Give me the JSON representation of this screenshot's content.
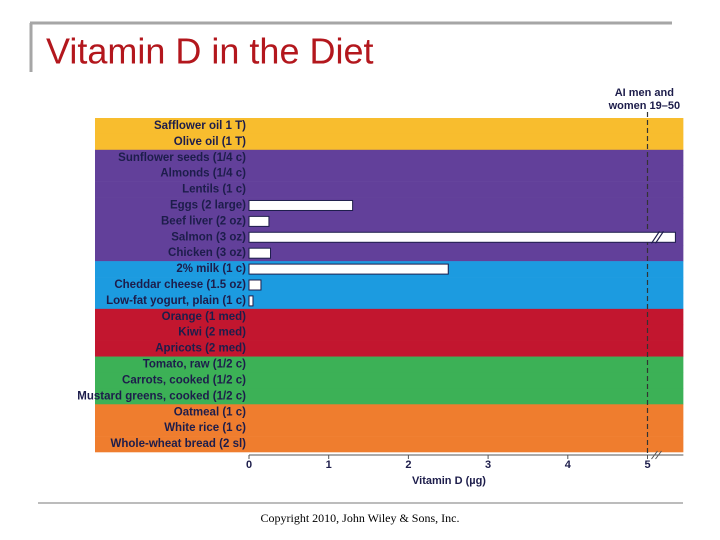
{
  "title": "Vitamin D in the Diet",
  "footer": "Copyright 2010, John Wiley & Sons, Inc.",
  "chart_data": {
    "type": "bar",
    "orientation": "horizontal",
    "categories": [
      "Safflower oil 1 T)",
      "Olive oil (1 T)",
      "Sunflower seeds (1/4 c)",
      "Almonds (1/4 c)",
      "Lentils (1 c)",
      "Eggs (2 large)",
      "Beef liver (2 oz)",
      "Salmon (3 oz)",
      "Chicken (3 oz)",
      "2% milk (1 c)",
      "Cheddar cheese (1.5 oz)",
      "Low-fat yogurt, plain (1 c)",
      "Orange (1 med)",
      "Kiwi (2 med)",
      "Apricots (2 med)",
      "Tomato, raw (1/2 c)",
      "Carrots, cooked (1/2 c)",
      "Mustard greens, cooked (1/2 c)",
      "Oatmeal (1 c)",
      "White rice (1 c)",
      "Whole-wheat bread (2 sl)"
    ],
    "values": [
      0,
      0,
      0,
      0,
      0,
      1.3,
      0.25,
      5.35,
      0.27,
      2.5,
      0.15,
      0.05,
      0,
      0,
      0,
      0,
      0,
      0,
      0,
      0,
      0
    ],
    "row_colors": [
      "#f8bd2e",
      "#f8bd2e",
      "#62409a",
      "#62409a",
      "#62409a",
      "#62409a",
      "#62409a",
      "#62409a",
      "#62409a",
      "#1c9be0",
      "#1c9be0",
      "#1c9be0",
      "#c2162f",
      "#c2162f",
      "#c2162f",
      "#3cb156",
      "#3cb156",
      "#3cb156",
      "#ef7d2e",
      "#ef7d2e",
      "#ef7d2e"
    ],
    "color": "#ffffff",
    "x_label": "Vitamin D (µg)",
    "xlim": [
      0,
      5.45
    ],
    "xticks": [
      0,
      1,
      2,
      3,
      4,
      5
    ],
    "reference_line": {
      "value": 5,
      "label": [
        "AI men and",
        "women 19–50"
      ]
    }
  }
}
